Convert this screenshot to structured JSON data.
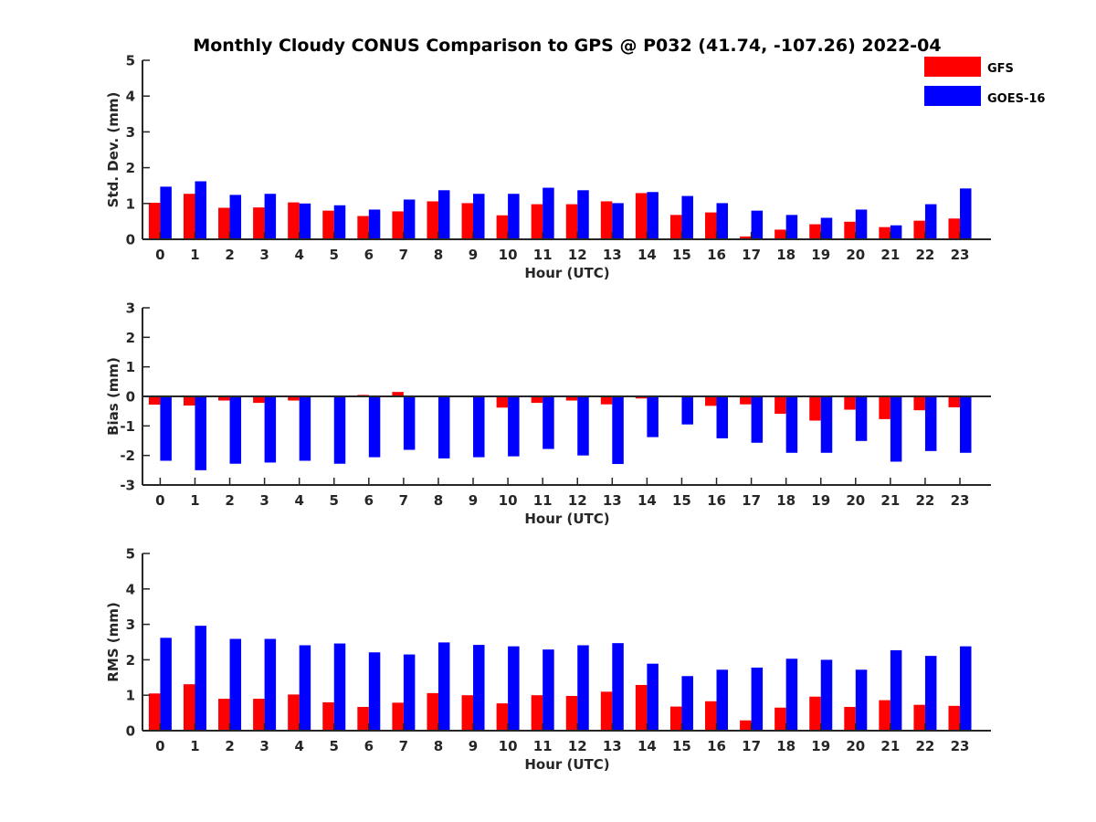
{
  "title": "Monthly Cloudy CONUS Comparison to GPS @ P032 (41.74, -107.26) 2022-04",
  "legend": [
    {
      "name": "GFS",
      "color": "#ff0000"
    },
    {
      "name": "GOES-16",
      "color": "#0000ff"
    }
  ],
  "chart_data": [
    {
      "type": "bar",
      "xlabel": "Hour (UTC)",
      "ylabel": "Std. Dev. (mm)",
      "ylim": [
        0,
        5
      ],
      "yticks": [
        "0",
        "1",
        "2",
        "3",
        "4",
        "5"
      ],
      "categories": [
        "0",
        "1",
        "2",
        "3",
        "4",
        "5",
        "6",
        "7",
        "8",
        "9",
        "10",
        "11",
        "12",
        "13",
        "14",
        "15",
        "16",
        "17",
        "18",
        "19",
        "20",
        "21",
        "22",
        "23"
      ],
      "series": [
        {
          "name": "GFS",
          "color": "#ff0000",
          "values": [
            1.02,
            1.27,
            0.88,
            0.89,
            1.03,
            0.8,
            0.65,
            0.78,
            1.06,
            1.01,
            0.67,
            0.98,
            0.98,
            1.06,
            1.29,
            0.68,
            0.75,
            0.08,
            0.27,
            0.42,
            0.49,
            0.34,
            0.52,
            0.58
          ]
        },
        {
          "name": "GOES-16",
          "color": "#0000ff",
          "values": [
            1.47,
            1.62,
            1.24,
            1.27,
            1.0,
            0.95,
            0.83,
            1.11,
            1.37,
            1.27,
            1.27,
            1.44,
            1.37,
            1.01,
            1.32,
            1.21,
            1.01,
            0.8,
            0.68,
            0.6,
            0.83,
            0.39,
            0.98,
            1.42
          ]
        }
      ]
    },
    {
      "type": "bar",
      "xlabel": "Hour (UTC)",
      "ylabel": "Bias (mm)",
      "ylim": [
        -3,
        3
      ],
      "yticks": [
        "-3",
        "-2",
        "-1",
        "0",
        "1",
        "2",
        "3"
      ],
      "categories": [
        "0",
        "1",
        "2",
        "3",
        "4",
        "5",
        "6",
        "7",
        "8",
        "9",
        "10",
        "11",
        "12",
        "13",
        "14",
        "15",
        "16",
        "17",
        "18",
        "19",
        "20",
        "21",
        "22",
        "23"
      ],
      "series": [
        {
          "name": "GFS",
          "color": "#ff0000",
          "values": [
            -0.28,
            -0.31,
            -0.14,
            -0.22,
            -0.14,
            0.0,
            0.05,
            0.15,
            0.0,
            0.0,
            -0.38,
            -0.22,
            -0.14,
            -0.27,
            -0.07,
            0.0,
            -0.32,
            -0.27,
            -0.59,
            -0.82,
            -0.45,
            -0.77,
            -0.47,
            -0.37
          ]
        },
        {
          "name": "GOES-16",
          "color": "#0000ff",
          "values": [
            -2.18,
            -2.5,
            -2.28,
            -2.24,
            -2.18,
            -2.28,
            -2.06,
            -1.81,
            -2.1,
            -2.06,
            -2.03,
            -1.78,
            -2.0,
            -2.29,
            -1.38,
            -0.95,
            -1.42,
            -1.57,
            -1.91,
            -1.91,
            -1.51,
            -2.21,
            -1.85,
            -1.91
          ]
        }
      ]
    },
    {
      "type": "bar",
      "xlabel": "Hour (UTC)",
      "ylabel": "RMS (mm)",
      "ylim": [
        0,
        5
      ],
      "yticks": [
        "0",
        "1",
        "2",
        "3",
        "4",
        "5"
      ],
      "categories": [
        "0",
        "1",
        "2",
        "3",
        "4",
        "5",
        "6",
        "7",
        "8",
        "9",
        "10",
        "11",
        "12",
        "13",
        "14",
        "15",
        "16",
        "17",
        "18",
        "19",
        "20",
        "21",
        "22",
        "23"
      ],
      "series": [
        {
          "name": "GFS",
          "color": "#ff0000",
          "values": [
            1.05,
            1.31,
            0.9,
            0.9,
            1.02,
            0.8,
            0.67,
            0.79,
            1.06,
            1.0,
            0.77,
            1.0,
            0.98,
            1.1,
            1.29,
            0.68,
            0.83,
            0.29,
            0.65,
            0.96,
            0.67,
            0.86,
            0.73,
            0.7
          ]
        },
        {
          "name": "GOES-16",
          "color": "#0000ff",
          "values": [
            2.62,
            2.96,
            2.59,
            2.59,
            2.41,
            2.46,
            2.21,
            2.15,
            2.49,
            2.42,
            2.38,
            2.29,
            2.41,
            2.47,
            1.89,
            1.54,
            1.72,
            1.78,
            2.03,
            2.0,
            1.72,
            2.27,
            2.11,
            2.38
          ]
        }
      ]
    }
  ]
}
